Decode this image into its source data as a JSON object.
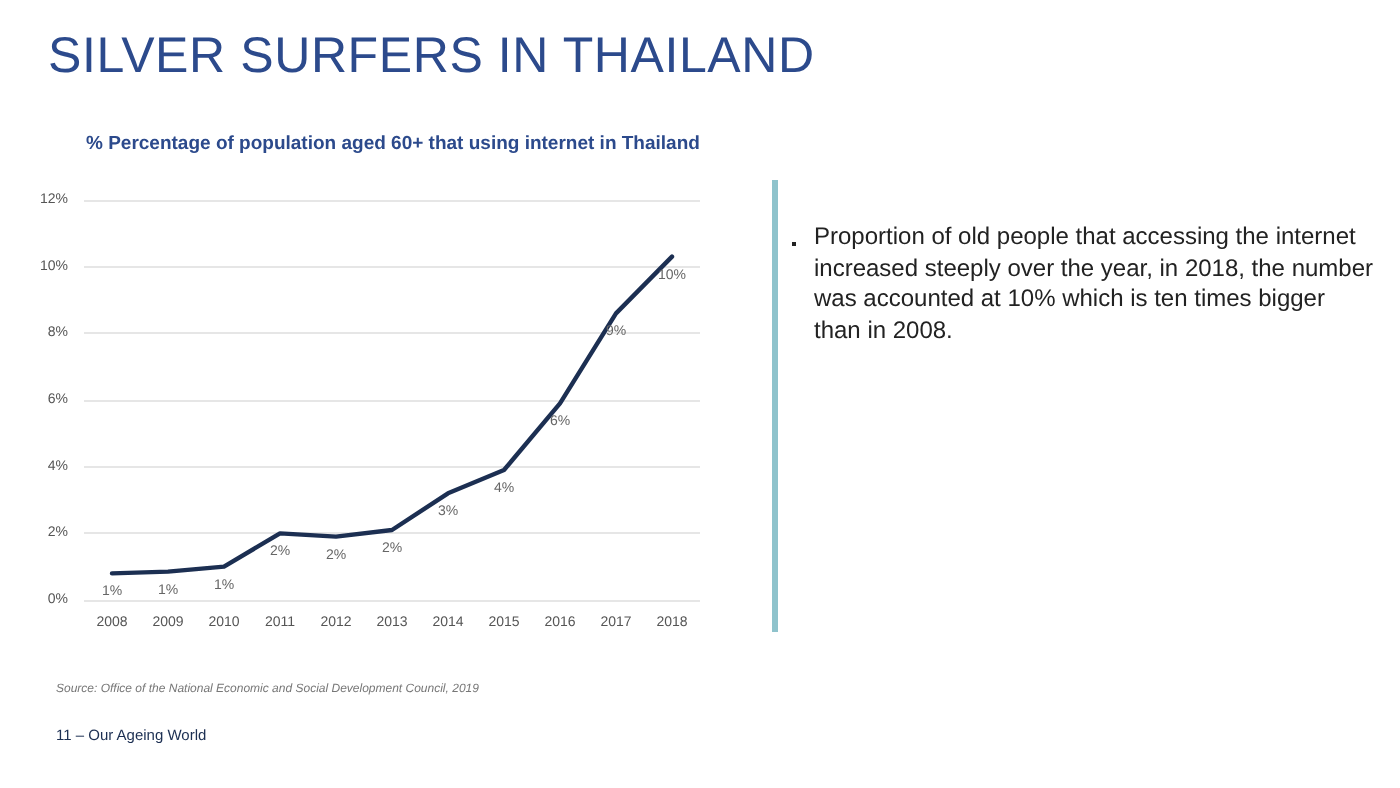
{
  "chart_data": {
    "type": "line",
    "title": "SILVER SURFERS IN THAILAND",
    "subtitle": "% Percentage of population aged 60+ that using internet in Thailand",
    "categories": [
      "2008",
      "2009",
      "2010",
      "2011",
      "2012",
      "2013",
      "2014",
      "2015",
      "2016",
      "2017",
      "2018"
    ],
    "series": [
      {
        "color": "#1c2f52",
        "values": [
          0.8,
          0.85,
          1.0,
          2.0,
          1.9,
          2.1,
          3.2,
          3.9,
          5.9,
          8.6,
          10.3
        ],
        "value_labels": [
          "1%",
          "1%",
          "1%",
          "2%",
          "2%",
          "2%",
          "3%",
          "4%",
          "6%",
          "9%",
          "10%"
        ]
      }
    ],
    "ylim": [
      0,
      12
    ],
    "yticks": [
      {
        "value": 0,
        "label": "0%"
      },
      {
        "value": 2,
        "label": "2%"
      },
      {
        "value": 4,
        "label": "4%"
      },
      {
        "value": 6,
        "label": "6%"
      },
      {
        "value": 8,
        "label": "8%"
      },
      {
        "value": 10,
        "label": "10%"
      },
      {
        "value": 12,
        "label": "12%"
      }
    ],
    "grid": "y",
    "marker": "none",
    "line_style": "solid",
    "annotations": [
      "Proportion of old people that accessing the internet increased steeply over the year, in 2018, the number was accounted at 10% which is ten times bigger than in 2008.",
      "Source: Office of the National Economic and Social Development Council, 2019",
      "11 – Our Ageing World"
    ]
  }
}
